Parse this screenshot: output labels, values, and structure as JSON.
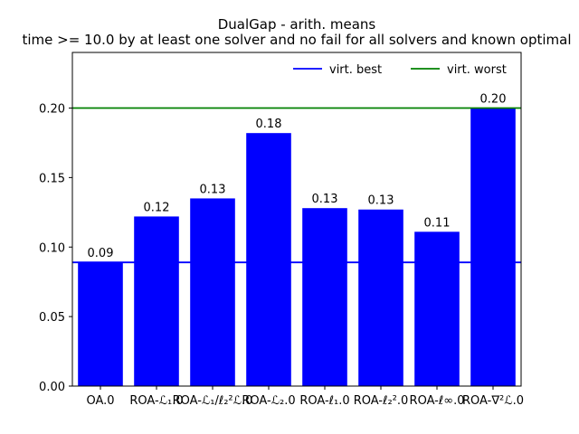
{
  "chart_data": {
    "type": "bar",
    "title": "DualGap - arith. means",
    "subtitle": "time >= 10.0 by at least one solver and no fail for all solvers and known optimal",
    "xlabel": "",
    "ylabel": "",
    "categories": [
      "OA.0",
      "ROA-ℒ₁.0",
      "ROA-ℒ₁/ℓ₂²ℒ.0",
      "ROA-ℒ₂.0",
      "ROA-ℓ₁.0",
      "ROA-ℓ₂².0",
      "ROA-ℓ∞.0",
      "ROA-∇²ℒ.0"
    ],
    "values": [
      0.089,
      0.122,
      0.135,
      0.182,
      0.128,
      0.127,
      0.111,
      0.2
    ],
    "data_labels": [
      "0.09",
      "0.12",
      "0.13",
      "0.18",
      "0.13",
      "0.13",
      "0.11",
      "0.20"
    ],
    "ylim": [
      0,
      0.24
    ],
    "yticks": [
      0.0,
      0.05,
      0.1,
      0.15,
      0.2
    ],
    "ytick_labels": [
      "0.00",
      "0.05",
      "0.10",
      "0.15",
      "0.20"
    ],
    "bar_color": "#0000ff",
    "reference_lines": [
      {
        "name": "virt. best",
        "value": 0.089,
        "color": "#0000ff"
      },
      {
        "name": "virt. worst",
        "value": 0.2,
        "color": "#008000"
      }
    ],
    "legend": {
      "placement": "top-right",
      "entries": [
        "virt. best",
        "virt. worst"
      ]
    },
    "grid": false
  }
}
